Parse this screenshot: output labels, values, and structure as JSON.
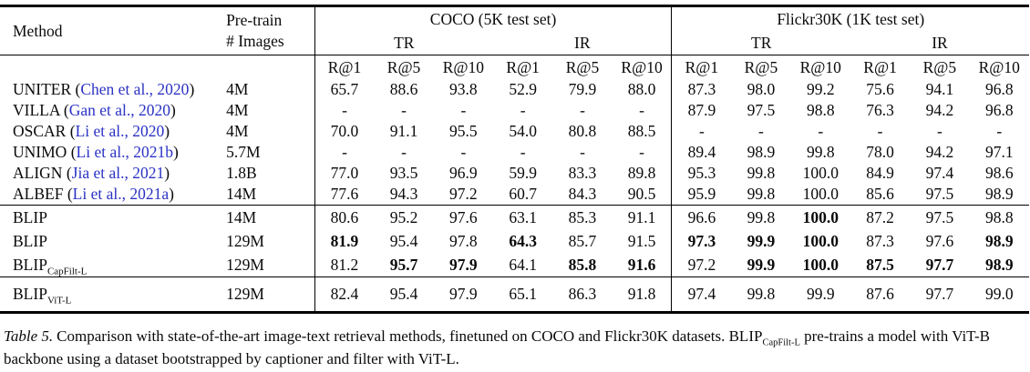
{
  "colors": {
    "citation": "#2b32c4",
    "text": "#0a0a0a",
    "background": "#ffffff"
  },
  "table": {
    "headers": {
      "method": "Method",
      "pretrain_line1": "Pre-train",
      "pretrain_line2": "# Images",
      "coco_title": "COCO (5K test set)",
      "flickr_title": "Flickr30K (1K test set)",
      "tr_label": "TR",
      "ir_label": "IR",
      "metrics": [
        "R@1",
        "R@5",
        "R@10"
      ]
    },
    "groups": [
      {
        "rows": [
          {
            "method": "UNITER",
            "cite": "Chen et al., 2020",
            "pretrain": "4M",
            "cells": [
              "65.7",
              "88.6",
              "93.8",
              "52.9",
              "79.9",
              "88.0",
              "87.3",
              "98.0",
              "99.2",
              "75.6",
              "94.1",
              "96.8"
            ]
          },
          {
            "method": "VILLA",
            "cite": "Gan et al., 2020",
            "pretrain": "4M",
            "cells": [
              "-",
              "-",
              "-",
              "-",
              "-",
              "-",
              "87.9",
              "97.5",
              "98.8",
              "76.3",
              "94.2",
              "96.8"
            ]
          },
          {
            "method": "OSCAR",
            "cite": "Li et al., 2020",
            "pretrain": "4M",
            "cells": [
              "70.0",
              "91.1",
              "95.5",
              "54.0",
              "80.8",
              "88.5",
              "-",
              "-",
              "-",
              "-",
              "-",
              "-"
            ]
          },
          {
            "method": "UNIMO",
            "cite": "Li et al., 2021b",
            "pretrain": "5.7M",
            "cells": [
              "-",
              "-",
              "-",
              "-",
              "-",
              "-",
              "89.4",
              "98.9",
              "99.8",
              "78.0",
              "94.2",
              "97.1"
            ]
          },
          {
            "method": "ALIGN",
            "cite": "Jia et al., 2021",
            "pretrain": "1.8B",
            "cells": [
              "77.0",
              "93.5",
              "96.9",
              "59.9",
              "83.3",
              "89.8",
              "95.3",
              "99.8",
              "100.0",
              "84.9",
              "97.4",
              "98.6"
            ]
          },
          {
            "method": "ALBEF",
            "cite": "Li et al., 2021a",
            "pretrain": "14M",
            "cells": [
              "77.6",
              "94.3",
              "97.2",
              "60.7",
              "84.3",
              "90.5",
              "95.9",
              "99.8",
              "100.0",
              "85.6",
              "97.5",
              "98.9"
            ]
          }
        ]
      },
      {
        "rows": [
          {
            "method": "BLIP",
            "pretrain": "14M",
            "cells": [
              "80.6",
              "95.2",
              "97.6",
              "63.1",
              "85.3",
              "91.1",
              "96.6",
              "99.8",
              {
                "v": "100.0",
                "bold": true
              },
              "87.2",
              "97.5",
              "98.8"
            ]
          },
          {
            "method": "BLIP",
            "pretrain": "129M",
            "cells": [
              {
                "v": "81.9",
                "bold": true
              },
              "95.4",
              "97.8",
              {
                "v": "64.3",
                "bold": true
              },
              "85.7",
              "91.5",
              {
                "v": "97.3",
                "bold": true
              },
              {
                "v": "99.9",
                "bold": true
              },
              {
                "v": "100.0",
                "bold": true
              },
              "87.3",
              "97.6",
              {
                "v": "98.9",
                "bold": true
              }
            ]
          },
          {
            "method": "BLIP",
            "sub": "CapFilt-L",
            "pretrain": "129M",
            "cells": [
              "81.2",
              {
                "v": "95.7",
                "bold": true
              },
              {
                "v": "97.9",
                "bold": true
              },
              "64.1",
              {
                "v": "85.8",
                "bold": true
              },
              {
                "v": "91.6",
                "bold": true
              },
              "97.2",
              {
                "v": "99.9",
                "bold": true
              },
              {
                "v": "100.0",
                "bold": true
              },
              {
                "v": "87.5",
                "bold": true
              },
              {
                "v": "97.7",
                "bold": true
              },
              {
                "v": "98.9",
                "bold": true
              }
            ]
          }
        ]
      },
      {
        "rows": [
          {
            "method": "BLIP",
            "sub": "ViT-L",
            "pretrain": "129M",
            "cells": [
              "82.4",
              "95.4",
              "97.9",
              "65.1",
              "86.3",
              "91.8",
              "97.4",
              "99.8",
              "99.9",
              "87.6",
              "97.7",
              "99.0"
            ]
          }
        ]
      }
    ]
  },
  "caption": {
    "label": "Table 5.",
    "text_before_sub": "Comparison with state-of-the-art image-text retrieval methods, finetuned on COCO and Flickr30K datasets. BLIP",
    "sub": "CapFilt-L",
    "text_after_sub": "pre-trains a model with ViT-B backbone using a dataset bootstrapped by captioner and filter with ViT-L."
  }
}
